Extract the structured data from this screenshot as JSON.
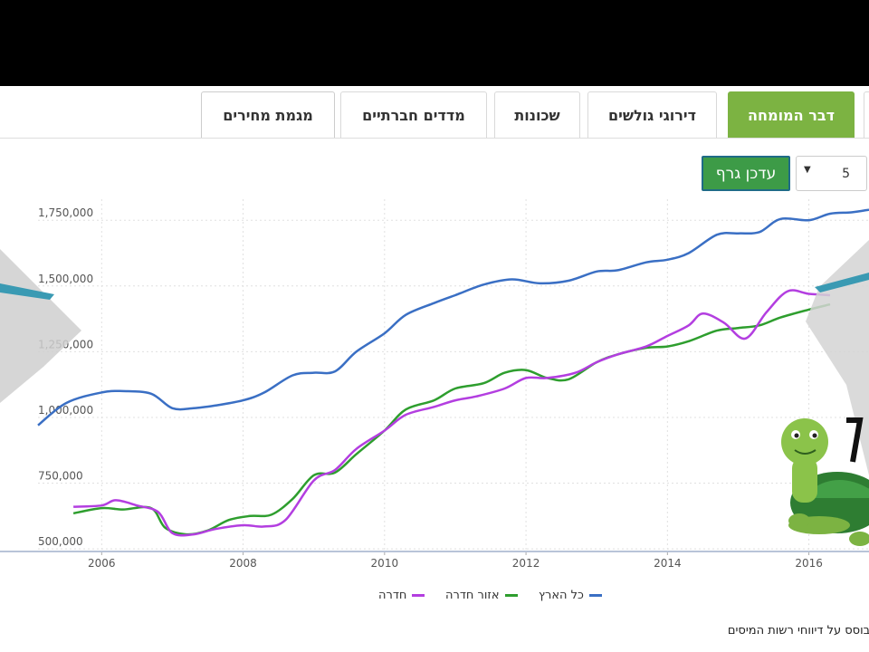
{
  "tabs": [
    {
      "label": "דבר המומחה",
      "style": "green"
    },
    {
      "label": "דירוגי גולשים",
      "style": "normal"
    },
    {
      "label": "שכונות",
      "style": "normal"
    },
    {
      "label": "מדדים חברתיים",
      "style": "normal"
    },
    {
      "label": "מגמת מחירים",
      "style": "active"
    }
  ],
  "controls": {
    "update_label": "עדכן גרף",
    "years_value": "5"
  },
  "source_note": "מבוסס על דיווחי רשות המיסים",
  "colors": {
    "national": "#3a6fc4",
    "region": "#2e9e2e",
    "city": "#b33ee0",
    "tab_green": "#7cb342",
    "button_green": "#3d9b47"
  },
  "chart_data": {
    "type": "line",
    "title": "",
    "xlabel": "",
    "ylabel": "",
    "xlim": [
      2005.1,
      2016.85
    ],
    "ylim": [
      490000,
      1830000
    ],
    "x_ticks": [
      2006,
      2008,
      2010,
      2012,
      2014,
      2016
    ],
    "x_tick_labels": [
      "2006",
      "2008",
      "2010",
      "2012",
      "2014",
      "2016"
    ],
    "y_ticks": [
      500000,
      750000,
      1000000,
      1250000,
      1500000,
      1750000
    ],
    "y_tick_labels": [
      "500,000",
      "750,000",
      "1,000,000",
      "1,250,000",
      "1,500,000",
      "1,750,000"
    ],
    "grid": true,
    "legend_position": "bottom-center",
    "series": [
      {
        "name": "כל הארץ",
        "color": "#3a6fc4",
        "x": [
          2005.1,
          2005.5,
          2006.0,
          2006.3,
          2006.7,
          2007.0,
          2007.3,
          2007.6,
          2008.0,
          2008.3,
          2008.7,
          2009.0,
          2009.3,
          2009.6,
          2010.0,
          2010.3,
          2010.7,
          2011.0,
          2011.4,
          2011.8,
          2012.2,
          2012.6,
          2013.0,
          2013.3,
          2013.7,
          2014.0,
          2014.3,
          2014.7,
          2015.0,
          2015.3,
          2015.6,
          2016.0,
          2016.3,
          2016.6,
          2016.85
        ],
        "values": [
          970000,
          1055000,
          1095000,
          1100000,
          1090000,
          1035000,
          1035000,
          1045000,
          1065000,
          1095000,
          1160000,
          1170000,
          1175000,
          1250000,
          1320000,
          1390000,
          1435000,
          1465000,
          1505000,
          1525000,
          1510000,
          1520000,
          1555000,
          1560000,
          1590000,
          1600000,
          1625000,
          1695000,
          1700000,
          1705000,
          1755000,
          1750000,
          1775000,
          1780000,
          1790000
        ]
      },
      {
        "name": "אזור חדרה",
        "color": "#2e9e2e",
        "x": [
          2005.6,
          2006.0,
          2006.3,
          2006.7,
          2006.9,
          2007.2,
          2007.5,
          2007.8,
          2008.1,
          2008.4,
          2008.7,
          2009.0,
          2009.3,
          2009.6,
          2010.0,
          2010.3,
          2010.7,
          2011.0,
          2011.4,
          2011.7,
          2012.0,
          2012.3,
          2012.6,
          2013.0,
          2013.3,
          2013.7,
          2014.0,
          2014.3,
          2014.7,
          2015.0,
          2015.3,
          2015.6,
          2016.0,
          2016.3
        ],
        "values": [
          635000,
          655000,
          650000,
          655000,
          580000,
          555000,
          570000,
          610000,
          625000,
          630000,
          690000,
          780000,
          790000,
          860000,
          950000,
          1030000,
          1065000,
          1110000,
          1130000,
          1170000,
          1180000,
          1150000,
          1145000,
          1210000,
          1240000,
          1265000,
          1270000,
          1290000,
          1330000,
          1340000,
          1350000,
          1380000,
          1410000,
          1430000
        ]
      },
      {
        "name": "חדרה",
        "color": "#b33ee0",
        "x": [
          2005.6,
          2006.0,
          2006.2,
          2006.5,
          2006.8,
          2007.0,
          2007.3,
          2007.6,
          2008.0,
          2008.3,
          2008.6,
          2009.0,
          2009.3,
          2009.6,
          2010.0,
          2010.3,
          2010.7,
          2011.0,
          2011.3,
          2011.7,
          2012.0,
          2012.3,
          2012.7,
          2013.0,
          2013.3,
          2013.7,
          2014.0,
          2014.3,
          2014.5,
          2014.8,
          2015.1,
          2015.4,
          2015.7,
          2016.0,
          2016.3
        ],
        "values": [
          660000,
          665000,
          685000,
          665000,
          640000,
          560000,
          555000,
          575000,
          590000,
          585000,
          610000,
          760000,
          800000,
          880000,
          950000,
          1010000,
          1040000,
          1065000,
          1080000,
          1110000,
          1150000,
          1150000,
          1170000,
          1210000,
          1240000,
          1270000,
          1310000,
          1350000,
          1395000,
          1360000,
          1300000,
          1400000,
          1480000,
          1470000,
          1465000
        ]
      }
    ]
  }
}
